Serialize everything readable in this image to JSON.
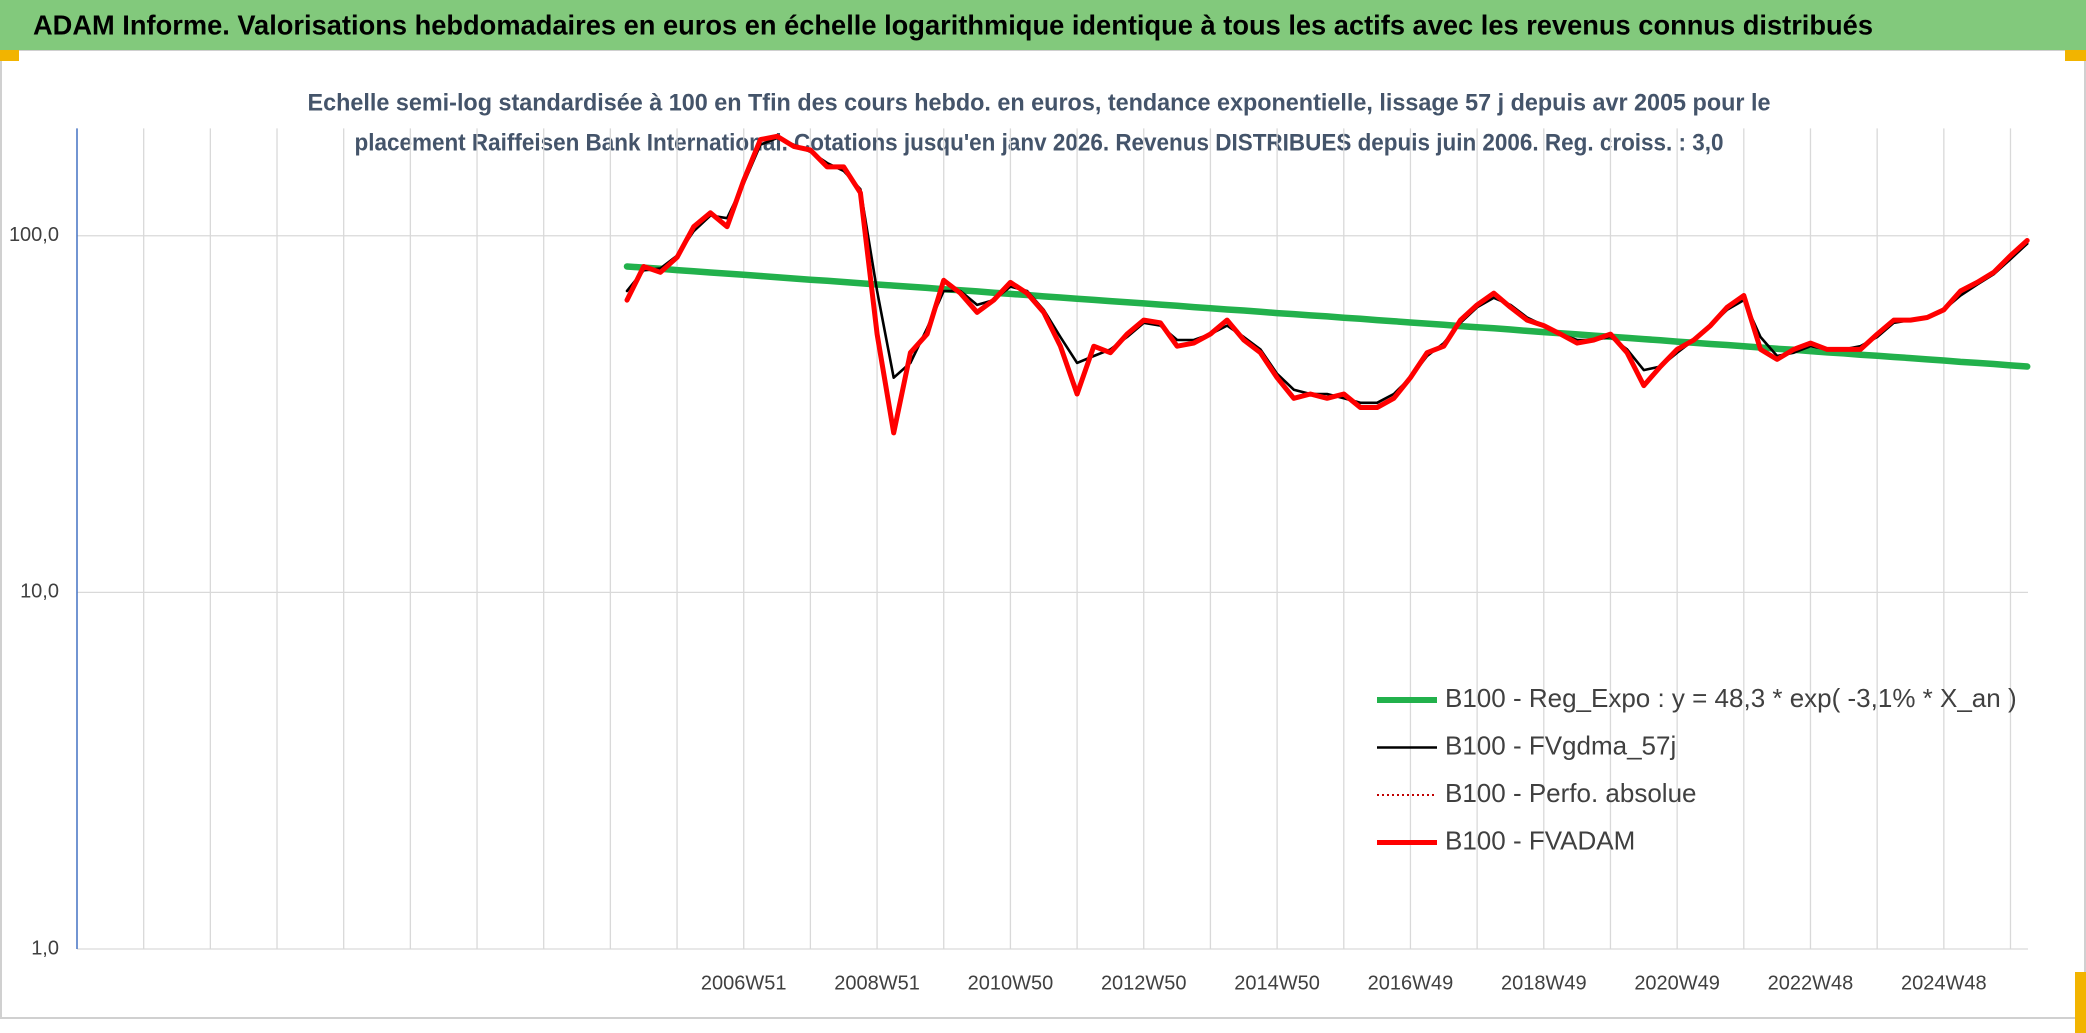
{
  "chart_data": {
    "type": "line",
    "title": "ADAM Informe. Valorisations hebdomadaires en euros en échelle logarithmique identique à tous les actifs avec les revenus connus distribués",
    "subtitle": [
      "Echelle semi-log standardisée à 100 en Tfin des cours hebdo. en euros, tendance exponentielle, lissage 57 j depuis avr 2005 pour le",
      "placement Raiffeisen Bank International. Cotations jusqu'en janv 2026. Revenus DISTRIBUES depuis juin 2006. Reg. croiss. : 3,0"
    ],
    "log_scale": true,
    "grid": true,
    "legend": "lower right",
    "ylim": [
      1,
      200
    ],
    "yticks": [
      {
        "value": 1,
        "label": "1,0"
      },
      {
        "value": 10,
        "label": "10,0"
      },
      {
        "value": 100,
        "label": "100,0"
      }
    ],
    "categories": [
      null,
      null,
      null,
      null,
      null,
      null,
      null,
      null,
      null,
      null,
      null,
      null,
      null,
      null,
      null,
      null,
      null,
      null,
      null,
      null,
      null,
      null,
      null,
      null,
      null,
      null,
      null,
      null,
      null,
      null,
      null,
      null,
      null,
      null,
      null,
      null,
      null,
      null,
      null,
      null,
      "2006W51",
      null,
      null,
      null,
      null,
      null,
      null,
      null,
      "2008W51",
      null,
      null,
      null,
      null,
      null,
      null,
      null,
      "2010W50",
      null,
      null,
      null,
      null,
      null,
      null,
      null,
      "2012W50",
      null,
      null,
      null,
      null,
      null,
      null,
      null,
      "2014W50",
      null,
      null,
      null,
      null,
      null,
      null,
      null,
      "2016W49",
      null,
      null,
      null,
      null,
      null,
      null,
      null,
      "2018W49",
      null,
      null,
      null,
      null,
      null,
      null,
      null,
      "2020W49",
      null,
      null,
      null,
      null,
      null,
      null,
      null,
      "2022W48",
      null,
      null,
      null,
      null,
      null,
      null,
      null,
      "2024W48",
      null,
      null,
      null,
      null,
      null
    ],
    "series": [
      {
        "name": "B100 - Reg_Expo : y = 48,3 * exp( -3,1% *  X_an )",
        "color": "#22b14c",
        "style": "solid",
        "width": 6.5,
        "values": [
          null,
          null,
          null,
          null,
          null,
          null,
          null,
          null,
          null,
          null,
          null,
          null,
          null,
          null,
          null,
          null,
          null,
          null,
          null,
          null,
          null,
          null,
          null,
          null,
          null,
          null,
          null,
          null,
          null,
          null,
          null,
          null,
          null,
          82.0,
          81.4,
          80.8,
          80.1,
          79.5,
          78.9,
          78.3,
          77.7,
          77.1,
          76.5,
          75.9,
          75.3,
          74.8,
          74.2,
          73.6,
          73.0,
          72.5,
          71.9,
          71.4,
          70.8,
          70.3,
          69.8,
          69.2,
          68.7,
          68.2,
          67.6,
          67.1,
          66.6,
          66.1,
          65.6,
          65.1,
          64.6,
          64.1,
          63.6,
          63.1,
          62.6,
          62.1,
          61.7,
          61.2,
          60.7,
          60.3,
          59.8,
          59.4,
          58.9,
          58.5,
          58.0,
          57.6,
          57.1,
          56.7,
          56.3,
          55.8,
          55.4,
          55.0,
          54.6,
          54.1,
          53.7,
          53.3,
          52.9,
          52.5,
          52.1,
          51.7,
          51.3,
          50.9,
          50.5,
          50.1,
          49.7,
          49.4,
          49.0,
          48.6,
          48.2,
          47.9,
          47.5,
          47.1,
          46.8,
          46.4,
          46.1,
          45.7,
          45.4,
          45.0,
          44.7,
          44.3,
          44.0,
          43.7,
          43.3,
          43.0
        ]
      },
      {
        "name": "B100 - FVgdma_57j",
        "color": "#000000",
        "style": "solid",
        "width": 2.6,
        "values": [
          null,
          null,
          null,
          null,
          null,
          null,
          null,
          null,
          null,
          null,
          null,
          null,
          null,
          null,
          null,
          null,
          null,
          null,
          null,
          null,
          null,
          null,
          null,
          null,
          null,
          null,
          null,
          null,
          null,
          null,
          null,
          null,
          null,
          70,
          80,
          81,
          88,
          103,
          114,
          112,
          140,
          180,
          188,
          180,
          172,
          160,
          152,
          135,
          70,
          40,
          44,
          55,
          70,
          70,
          64,
          66,
          72,
          70,
          62,
          52,
          44,
          46,
          48,
          52,
          57,
          56,
          51,
          51,
          53,
          56,
          52,
          48,
          41,
          37,
          36,
          36,
          35,
          34,
          34,
          36,
          40,
          46,
          50,
          57,
          63,
          67,
          64,
          59,
          56,
          53,
          51,
          51,
          52,
          48,
          42,
          43,
          47,
          51,
          56,
          62,
          66,
          52,
          46,
          47,
          49,
          48,
          48,
          49,
          52,
          57,
          58,
          59,
          62,
          68,
          73,
          78,
          86,
          95
        ]
      },
      {
        "name": "B100 - Perfo. absolue",
        "color": "#c00000",
        "style": "dotted",
        "width": 2,
        "values": [
          null,
          null,
          null,
          null,
          null,
          null,
          null,
          null,
          null,
          null,
          null,
          null,
          null,
          null,
          null,
          null,
          null,
          null,
          null,
          null,
          null,
          null,
          null,
          null,
          null,
          null,
          null,
          null,
          null,
          null,
          null,
          null,
          null,
          66,
          82,
          79,
          87,
          106,
          116,
          106,
          143,
          186,
          190,
          178,
          174,
          156,
          156,
          132,
          53,
          28,
          47,
          53,
          75,
          69,
          61,
          66,
          74,
          69,
          61,
          49,
          36,
          49,
          47,
          53,
          58,
          57,
          49,
          50,
          53,
          58,
          51,
          47,
          40,
          35,
          36,
          35,
          36,
          33,
          33,
          35,
          40,
          47,
          49,
          58,
          64,
          69,
          63,
          58,
          56,
          53,
          50,
          51,
          53,
          47,
          38,
          43,
          48,
          51,
          56,
          63,
          68,
          48,
          45,
          48,
          50,
          48,
          48,
          48,
          53,
          58,
          58,
          59,
          62,
          70,
          74,
          79,
          88,
          97
        ]
      },
      {
        "name": "B100 - FVADAM",
        "color": "#ff0000",
        "style": "solid",
        "width": 5,
        "values": [
          null,
          null,
          null,
          null,
          null,
          null,
          null,
          null,
          null,
          null,
          null,
          null,
          null,
          null,
          null,
          null,
          null,
          null,
          null,
          null,
          null,
          null,
          null,
          null,
          null,
          null,
          null,
          null,
          null,
          null,
          null,
          null,
          null,
          66,
          82,
          79,
          87,
          106,
          116,
          106,
          143,
          186,
          190,
          178,
          174,
          156,
          156,
          132,
          53,
          28,
          47,
          53,
          75,
          69,
          61,
          66,
          74,
          69,
          61,
          49,
          36,
          49,
          47,
          53,
          58,
          57,
          49,
          50,
          53,
          58,
          51,
          47,
          40,
          35,
          36,
          35,
          36,
          33,
          33,
          35,
          40,
          47,
          49,
          58,
          64,
          69,
          63,
          58,
          56,
          53,
          50,
          51,
          53,
          47,
          38,
          43,
          48,
          51,
          56,
          63,
          68,
          48,
          45,
          48,
          50,
          48,
          48,
          48,
          53,
          58,
          58,
          59,
          62,
          70,
          74,
          79,
          88,
          97
        ]
      }
    ]
  }
}
